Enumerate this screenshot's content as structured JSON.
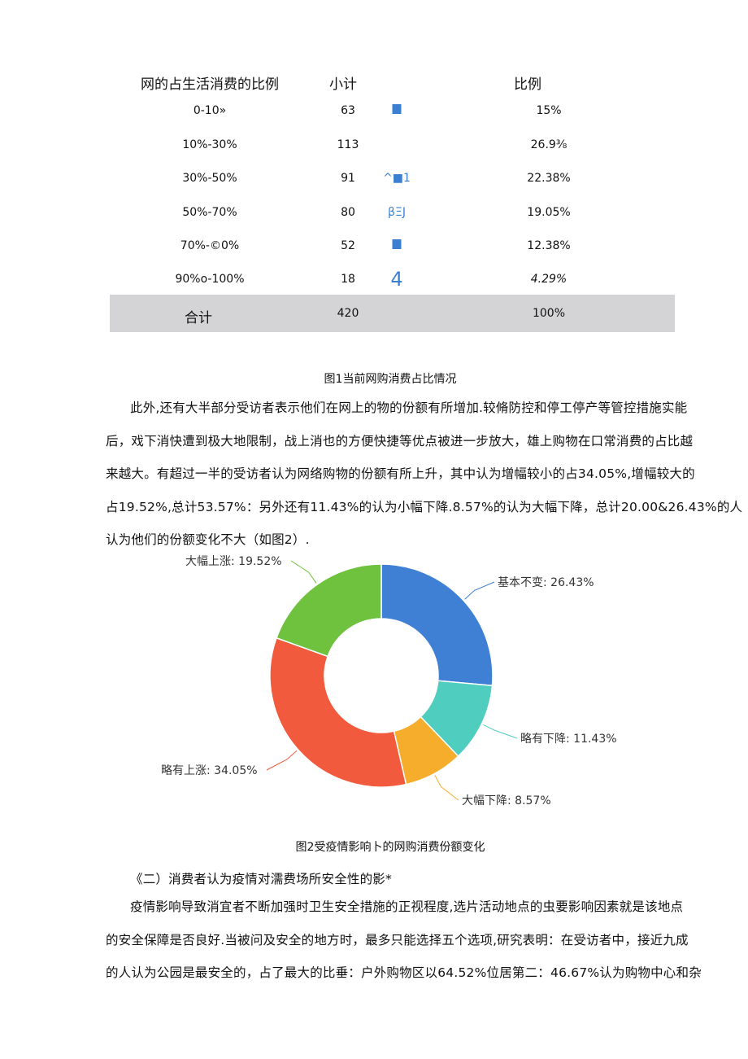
{
  "table": {
    "headers": [
      "网的占生活消费的比例",
      "小计",
      "比例"
    ],
    "rows": [
      {
        "range": "0-10»",
        "count": "63",
        "mark": "■",
        "ratio": "15%"
      },
      {
        "range": "10%-30%",
        "count": "113",
        "mark": "",
        "ratio": "26.9⅜"
      },
      {
        "range": "30%-50%",
        "count": "91",
        "mark": "^■1",
        "ratio": "22.38%"
      },
      {
        "range": "50%-70%",
        "count": "80",
        "mark": "βΞJ",
        "ratio": "19.05%"
      },
      {
        "range": "70%-©0%",
        "count": "52",
        "mark": "■",
        "ratio": "12.38%"
      },
      {
        "range": "90%o-100%",
        "count": "18",
        "mark": "4",
        "ratio": "4.29%"
      }
    ],
    "total": {
      "label": "合计",
      "count": "420",
      "ratio": "100%"
    }
  },
  "caption1": "图1当前网购消费占比情况",
  "paragraph1": [
    "此外,还有大半部分受访者表示他们在网上的物的份额有所增加.较脩防控和停工停产等管控措施实能",
    "后，戏下消快遭到极大地限制，战上消也的方便快捷等优点被进一步放大，雄上购物在口常消费的占比越",
    "来越大。有超过一半的受访者认为网络购物的份额有所上升，其中认为增幅较小的占34.05%,增幅较大的",
    "占19.52%,总计53.57%：另外还有11.43%的认为小幅下降.8.57%的认为大幅下降，总计20.00&26.43%的人",
    "认为他们的份额变化不大（如图2）."
  ],
  "chart_data": {
    "type": "pie",
    "donut": true,
    "categories": [
      "基本不变",
      "略有下降",
      "大幅下降",
      "略有上涨",
      "大幅上涨"
    ],
    "values": [
      26.43,
      11.43,
      8.57,
      34.05,
      19.52
    ],
    "labels": [
      "基本不变: 26.43%",
      "略有下降: 11.43%",
      "大幅下降: 8.57%",
      "略有上涨: 34.05%",
      "大幅上涨: 19.52%"
    ],
    "colors": [
      "#3f80d4",
      "#4fcdbf",
      "#f6ad2c",
      "#f15a3c",
      "#6ec23d"
    ],
    "start": "top, clockwise"
  },
  "caption2": "图2受疫情影响卜的网购消费份额变化",
  "section_heading": "《二）消费者认为疫情对濡费场所安全性的影*",
  "paragraph2": [
    "疫情影响导致消宜者不断加强时卫生安全措施的正视程度,选片活动地点的虫要影响因素就是该地点",
    "的安全保障是否良好.当被问及安全的地方时，最多只能选择五个选项,研究表明：在受访者中，接近九成",
    "的人认为公园是最安全的，占了最大的比垂：户外购物区以64.52%位居第二：46.67%认为购物中心和杂"
  ]
}
